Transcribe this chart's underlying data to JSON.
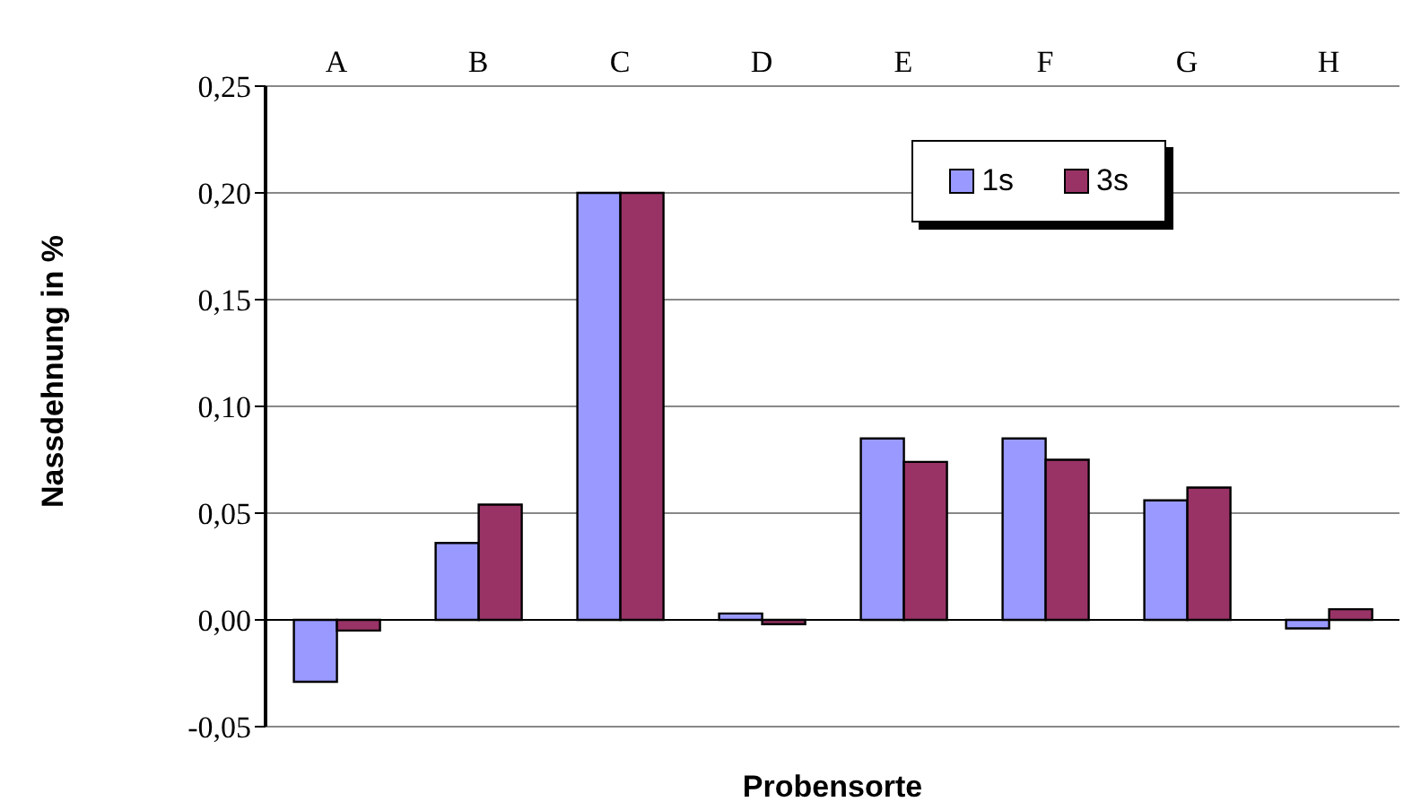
{
  "chart_data": {
    "type": "bar",
    "xlabel": "Probensorte",
    "ylabel": "Nassdehnung in %",
    "categories": [
      "A",
      "B",
      "C",
      "D",
      "E",
      "F",
      "G",
      "H"
    ],
    "series": [
      {
        "name": "1s",
        "color": "#9999ff",
        "values": [
          -0.029,
          0.036,
          0.2,
          0.003,
          0.085,
          0.085,
          0.056,
          -0.004
        ]
      },
      {
        "name": "3s",
        "color": "#993366",
        "values": [
          -0.005,
          0.054,
          0.2,
          -0.002,
          0.074,
          0.075,
          0.062,
          0.005
        ]
      }
    ],
    "ylim": [
      -0.05,
      0.25
    ],
    "yticks": [
      {
        "value": -0.05,
        "label": "-0,05"
      },
      {
        "value": 0,
        "label": "0,00"
      },
      {
        "value": 0.05,
        "label": "0,05"
      },
      {
        "value": 0.1,
        "label": "0,10"
      },
      {
        "value": 0.15,
        "label": "0,15"
      },
      {
        "value": 0.2,
        "label": "0,20"
      },
      {
        "value": 0.25,
        "label": "0,25"
      }
    ],
    "grid": "y",
    "legend": "top right"
  }
}
